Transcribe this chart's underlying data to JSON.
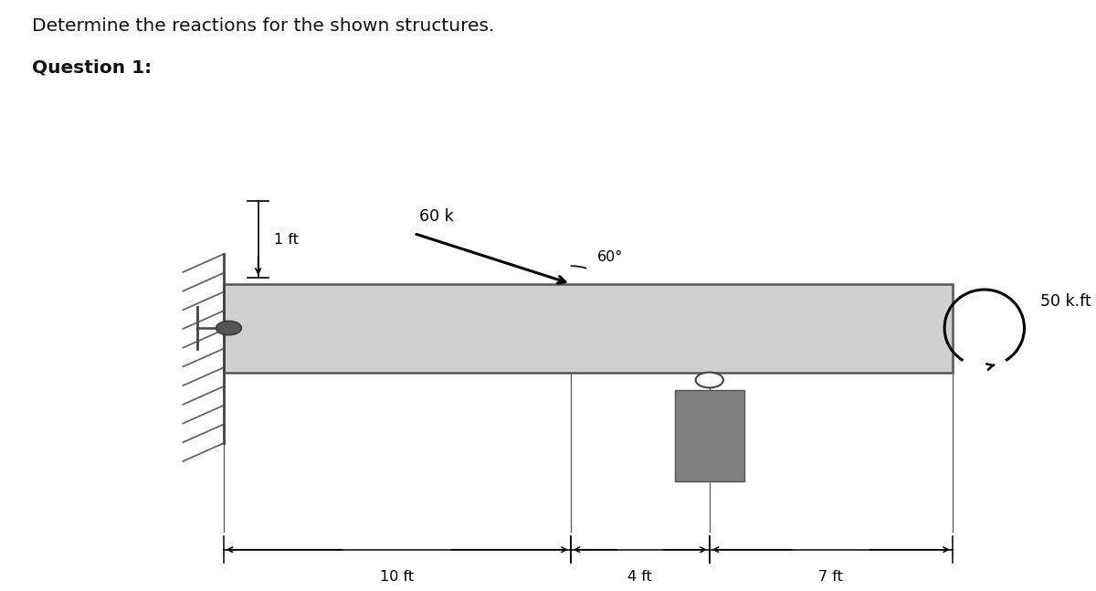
{
  "title_line1": "Determine the reactions for the shown structures.",
  "title_line2": "Question 1:",
  "bg_color": "#ffffff",
  "beam_color": "#d0d0d0",
  "beam_outline_color": "#555555",
  "hatch_color": "#666666",
  "rect_fill_color": "#808080",
  "force_label": "60 k",
  "angle_label": "60°",
  "moment_label": "50 k.ft",
  "dim_1ft": "1 ft",
  "dim_10ft": "10 ft",
  "dim_4ft": "4 ft",
  "dim_7ft": "7 ft",
  "bx0": 0.21,
  "bx1": 0.895,
  "by0": 0.37,
  "by1": 0.52,
  "total_ft": 21.0
}
